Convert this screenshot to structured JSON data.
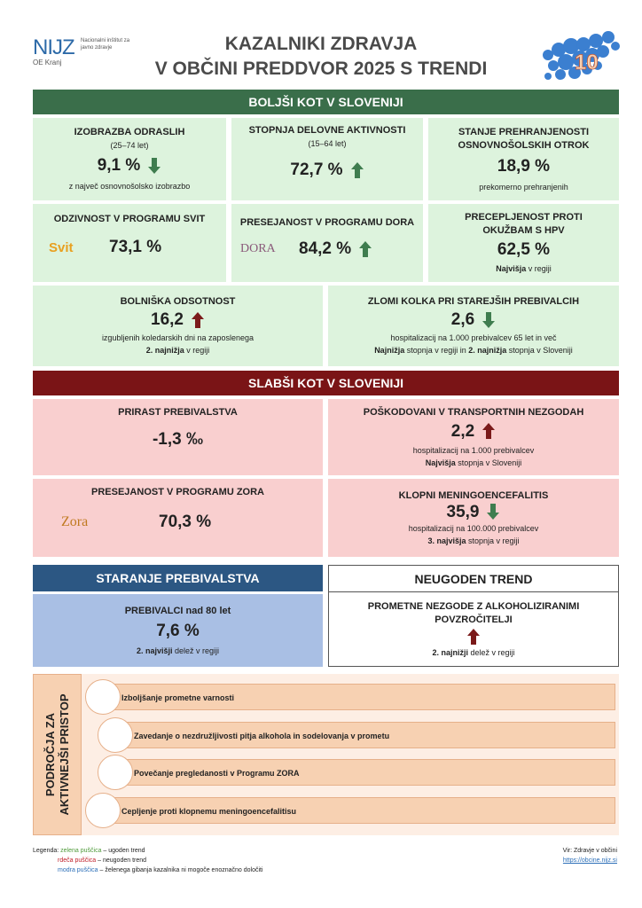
{
  "header": {
    "org_short": "NIJZ",
    "org_full": "Nacionalni inštitut za javno zdravje",
    "unit": "OE Kranj",
    "title_line1": "KAZALNIKI ZDRAVJA",
    "title_line2": "V OBČINI PREDDVOR 2025 S TRENDI",
    "badge": "10"
  },
  "colors": {
    "better": "#3a6e4a",
    "worse": "#7a1416",
    "aging": "#2c5783",
    "green_arrow": "#3f7d4f",
    "red_arrow": "#7b1a1a"
  },
  "better": {
    "heading": "BOLJŠI KOT V SLOVENIJI",
    "cards": [
      {
        "title": "IZOBRAZBA ODRASLIH",
        "sub": "(25–74 let)",
        "value": "9,1 %",
        "trend": "down-green",
        "note": "z največ osnovnošolsko izobrazbo"
      },
      {
        "title": "STOPNJA DELOVNE AKTIVNOSTI",
        "sub": "(15–64 let)",
        "value": "72,7 %",
        "trend": "up-green"
      },
      {
        "title": "STANJE PREHRANJENOSTI OSNOVNOŠOLSKIH OTROK",
        "value": "18,9 %",
        "note": "prekomerno prehranjenih"
      },
      {
        "title": "ODZIVNOST V PROGRAMU SVIT",
        "logo": "Svit",
        "value": "73,1 %"
      },
      {
        "title": "PRESEJANOST V PROGRAMU DORA",
        "logo": "DORA",
        "value": "84,2 %",
        "trend": "up-green"
      },
      {
        "title": "PRECEPLJENOST PROTI OKUŽBAM S HPV",
        "value": "62,5 %",
        "note_bold": "Najvišja",
        "note": " v regiji"
      },
      {
        "title": "BOLNIŠKA ODSOTNOST",
        "value": "16,2",
        "trend": "up-red",
        "note": "izgubljenih koledarskih dni na zaposlenega",
        "note2_bold": "2. najnižja",
        "note2": " v regiji"
      },
      {
        "title": "ZLOMI KOLKA PRI STAREJŠIH PREBIVALCIH",
        "value": "2,6",
        "trend": "down-green",
        "note": "hospitalizacij na 1.000 prebivalcev 65 let in več",
        "note2_bold": "Najnižja",
        "note2": " stopnja v regiji in ",
        "note2_bold2": "2. najnižja",
        "note2_end": " stopnja v Sloveniji"
      }
    ]
  },
  "worse": {
    "heading": "SLABŠI KOT V SLOVENIJI",
    "cards": [
      {
        "title": "PRIRAST PREBIVALSTVA",
        "value": "-1,3 ‰"
      },
      {
        "title": "POŠKODOVANI V TRANSPORTNIH NEZGODAH",
        "value": "2,2",
        "trend": "up-red",
        "note": "hospitalizacij na 1.000 prebivalcev",
        "note2_bold": "Najvišja",
        "note2": " stopnja v Sloveniji"
      },
      {
        "title": "PRESEJANOST V PROGRAMU ZORA",
        "logo": "Zora",
        "value": "70,3 %"
      },
      {
        "title": "KLOPNI MENINGOENCEFALITIS",
        "value": "35,9",
        "trend": "down-green",
        "note": "hospitalizacij na 100.000 prebivalcev",
        "note2_bold": "3. najvišja",
        "note2": " stopnja v regiji"
      }
    ]
  },
  "aging": {
    "heading": "STARANJE PREBIVALSTVA",
    "title": "PREBIVALCI nad 80 let",
    "value": "7,6 %",
    "note_bold": "2. najvišji",
    "note": " delež v regiji"
  },
  "unfavorable": {
    "heading": "NEUGODEN TREND",
    "title": "PROMETNE NEZGODE Z ALKOHOLIZIRANIMI POVZROČITELJI",
    "trend": "up-red",
    "note_bold": "2. najnižji",
    "note": " delež v regiji"
  },
  "focus": {
    "heading_line1": "PODROČJA ZA",
    "heading_line2": "AKTIVNEJŠI PRISTOP",
    "items": [
      "Izboljšanje prometne varnosti",
      "Zavedanje o nezdružljivosti pitja alkohola in sodelovanja v prometu",
      "Povečanje pregledanosti v Programu ZORA",
      "Cepljenje proti klopnemu meningoencefalitisu"
    ]
  },
  "legend": {
    "label": "Legenda:",
    "green": "zelena puščica",
    "green_desc": " – ugoden trend",
    "red": "rdeča puščica",
    "red_desc": "  – neugoden trend",
    "blue": "modra puščica",
    "blue_desc": " – želenega gibanja kazalnika ni mogoče enoznačno določiti"
  },
  "source": {
    "label": "Vir: Zdravje v občini",
    "url": "https://obcine.nijz.si"
  }
}
